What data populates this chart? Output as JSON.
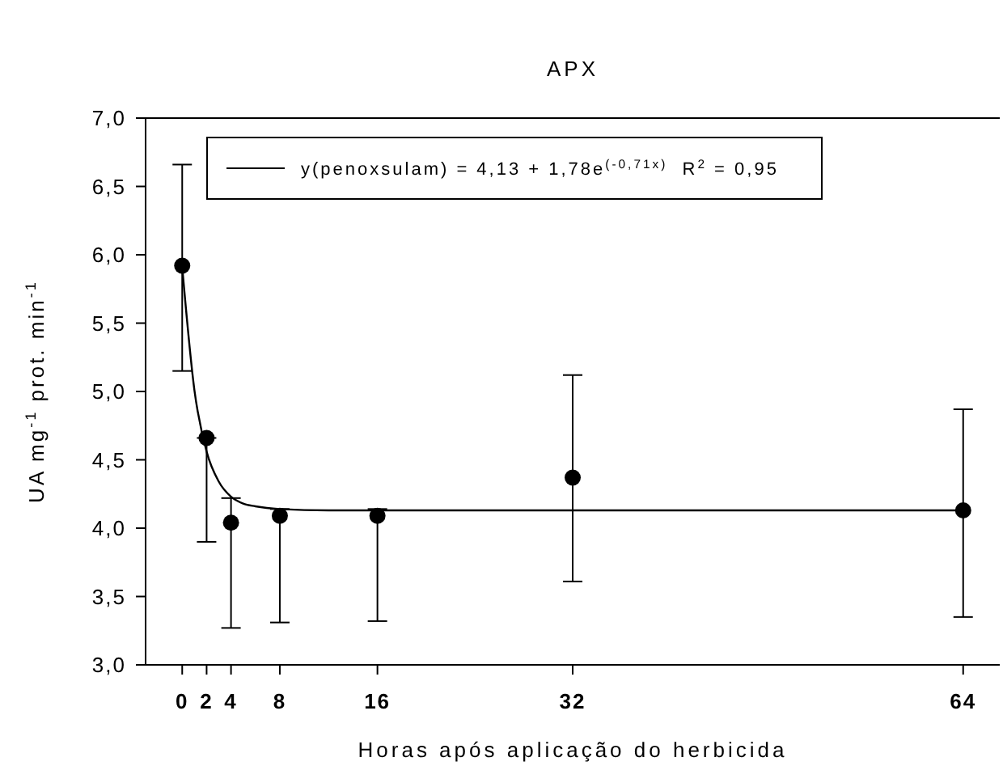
{
  "chart_data": {
    "type": "scatter",
    "title": "APX",
    "xlabel": "Horas após aplicação do herbicida",
    "ylabel": "UA mg$^{-1}$ prot. min$^{-1}$",
    "xlim": [
      -3,
      67
    ],
    "xticks": [
      0,
      2,
      4,
      8,
      16,
      32,
      64
    ],
    "ylim": [
      3,
      7
    ],
    "yticks": [
      {
        "value": 3,
        "label": "3,0"
      },
      {
        "value": 3.5,
        "label": "3,5"
      },
      {
        "value": 4,
        "label": "4,0"
      },
      {
        "value": 4.5,
        "label": "4,5"
      },
      {
        "value": 5,
        "label": "5,0"
      },
      {
        "value": 5.5,
        "label": "5,5"
      },
      {
        "value": 6,
        "label": "6,0"
      },
      {
        "value": 6.5,
        "label": "6,5"
      },
      {
        "value": 7,
        "label": "7,0"
      }
    ],
    "grid": false,
    "legend": "top left",
    "marker": "circle",
    "series": [
      {
        "color": "#000000",
        "x": [
          0,
          2,
          4,
          8,
          16,
          32,
          64
        ],
        "values": [
          5.92,
          4.66,
          4.04,
          4.09,
          4.09,
          4.37,
          4.13
        ],
        "errors": [
          [
            5.15,
            6.66
          ],
          [
            3.9,
            4.66
          ],
          [
            3.27,
            4.22
          ],
          [
            3.31,
            4.14
          ],
          [
            3.32,
            4.14
          ],
          [
            3.61,
            5.12
          ],
          [
            3.35,
            4.87
          ]
        ]
      },
      {
        "type": "line",
        "name": "y(penoxsulam) = 4,13 + 1,78e$^{(-0,71x)}$  R$^{2}$ = 0,95",
        "color": "#000000",
        "line_style": "solid",
        "marker": "none",
        "x": [
          0,
          1,
          2,
          3,
          4,
          5,
          6,
          8,
          12,
          64
        ],
        "values": [
          5.91,
          5.01,
          4.56,
          4.34,
          4.23,
          4.18,
          4.16,
          4.14,
          4.13,
          4.13
        ]
      }
    ]
  }
}
